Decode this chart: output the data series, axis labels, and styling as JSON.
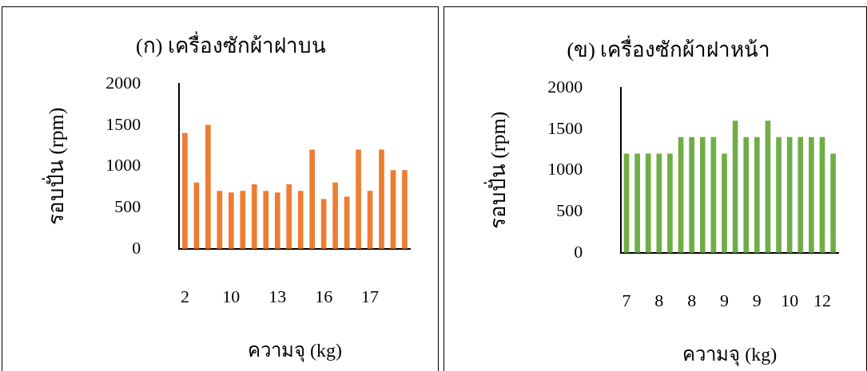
{
  "chart_data": [
    {
      "type": "bar",
      "title": "(ก) เครื่องซักผ้าฝาบน",
      "xlabel": "ความจุ (kg)",
      "ylabel": "รอบปั่น (rpm)",
      "categories": [
        "2",
        null,
        null,
        null,
        "10",
        null,
        null,
        null,
        "13",
        null,
        null,
        null,
        "16",
        null,
        null,
        null,
        "17",
        null,
        null,
        null
      ],
      "values": [
        1400,
        800,
        1500,
        700,
        680,
        700,
        780,
        700,
        680,
        780,
        700,
        1200,
        600,
        800,
        630,
        1200,
        700,
        1200,
        950,
        950
      ],
      "color": "#ed7d31",
      "ylim": [
        0,
        2000
      ],
      "yticks": [
        0,
        500,
        1000,
        1500,
        2000
      ]
    },
    {
      "type": "bar",
      "title": "(ข) เครื่องซักผ้าฝาหน้า",
      "xlabel": "ความจุ (kg)",
      "ylabel": "รอบปั่น (rpm)",
      "categories": [
        "7",
        null,
        null,
        "8",
        null,
        null,
        "8",
        null,
        null,
        "9",
        null,
        null,
        "9",
        null,
        null,
        "10",
        null,
        null,
        "12",
        null
      ],
      "values": [
        1200,
        1200,
        1200,
        1200,
        1200,
        1400,
        1400,
        1400,
        1400,
        1200,
        1600,
        1400,
        1400,
        1600,
        1400,
        1400,
        1400,
        1400,
        1400,
        1200
      ],
      "color": "#70ad47",
      "ylim": [
        0,
        2000
      ],
      "yticks": [
        0,
        500,
        1000,
        1500,
        2000
      ]
    }
  ]
}
